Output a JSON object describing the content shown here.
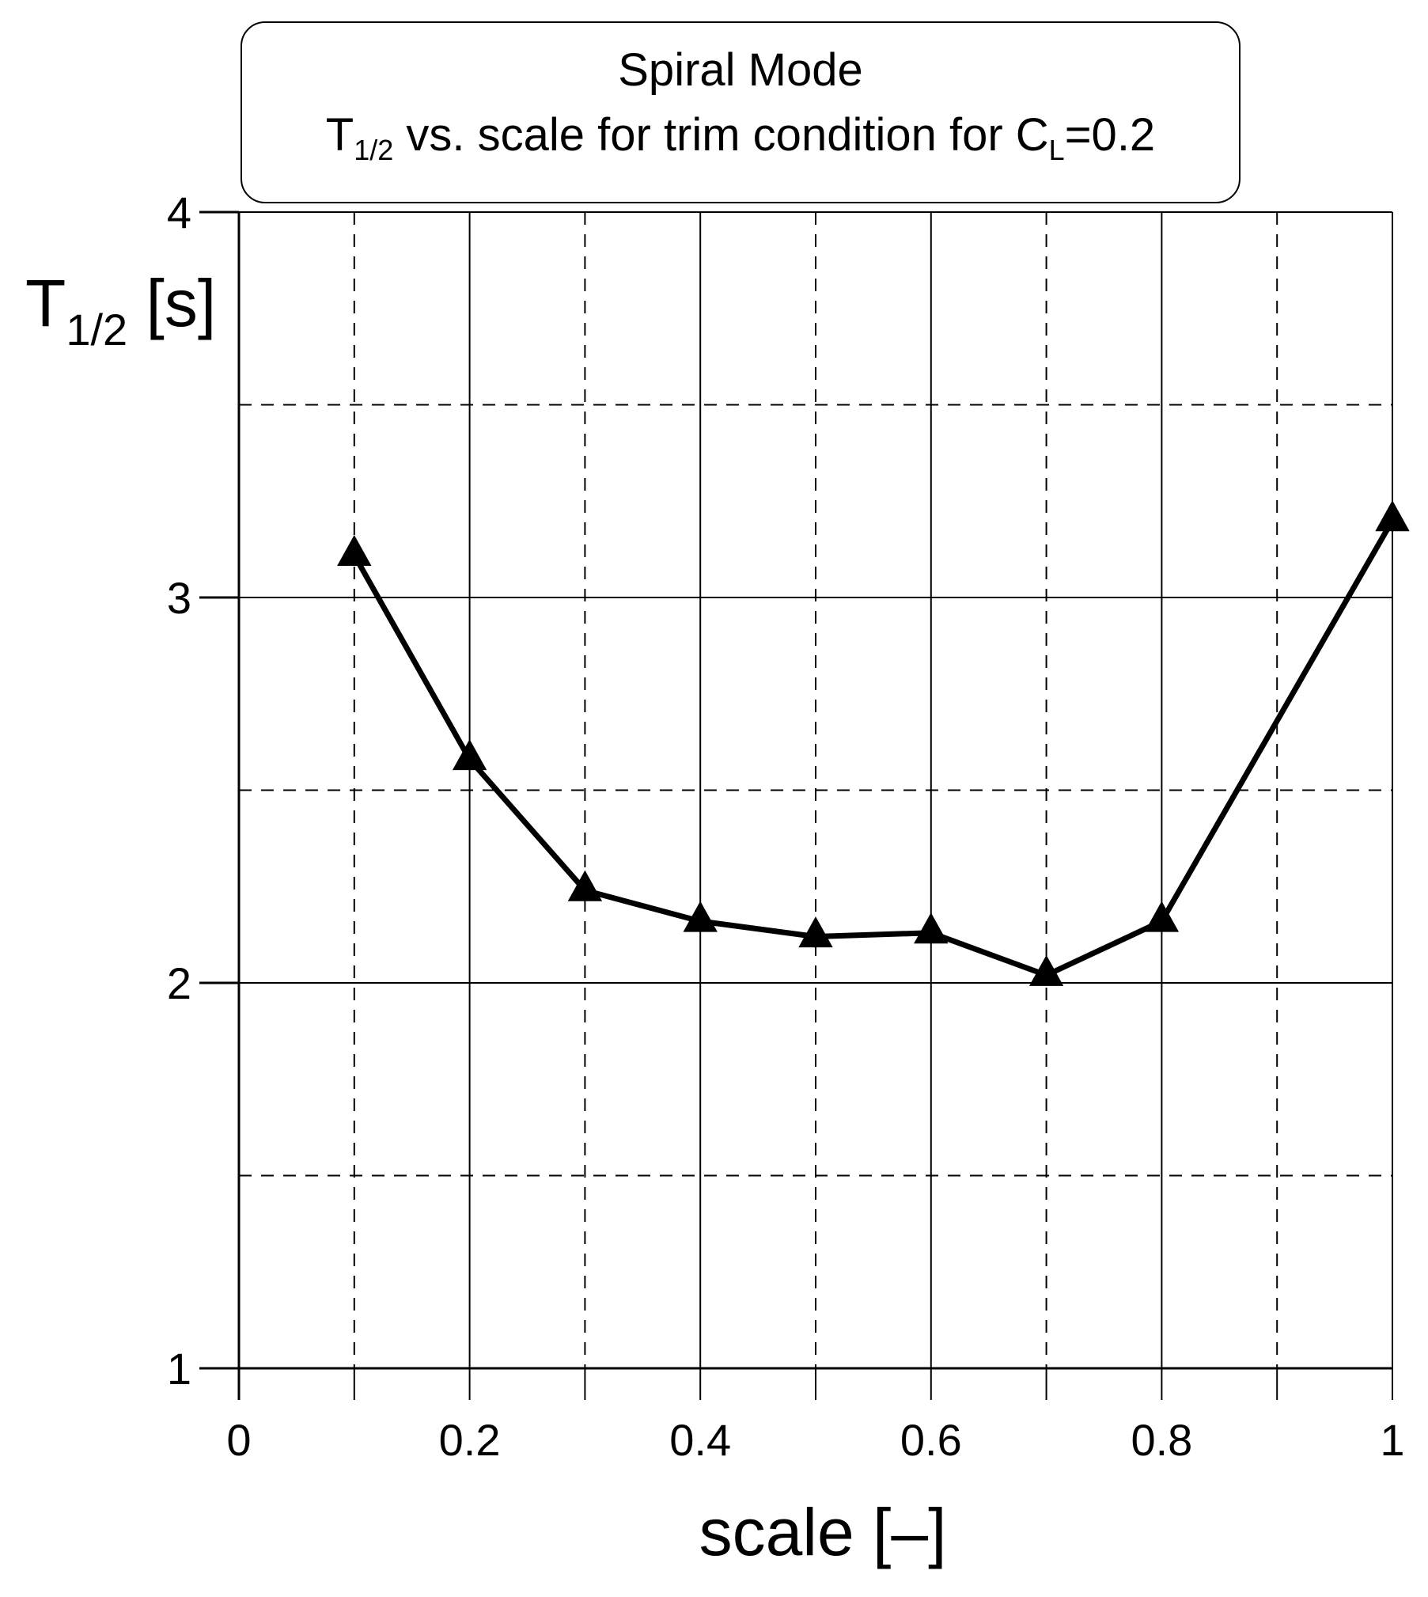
{
  "chart_data": {
    "type": "line",
    "title": "Spiral Mode",
    "subtitle": {
      "symbol": "T",
      "symbol_sub": "1/2",
      "middle": " vs. scale for trim condition for C",
      "cl_sub": "L",
      "end": "=0.2"
    },
    "xlabel": "scale [–]",
    "ylabel": {
      "symbol": "T",
      "symbol_sub": "1/2",
      "unit": " [s]"
    },
    "xlim": [
      0,
      1
    ],
    "ylim": [
      1,
      4
    ],
    "x_ticks": [
      "0",
      "0.2",
      "0.4",
      "0.6",
      "0.8",
      "1"
    ],
    "y_ticks": [
      "1",
      "2",
      "3",
      "4"
    ],
    "grid": true,
    "marker": "triangle",
    "series": [
      {
        "x": [
          0.1,
          0.2,
          0.3,
          0.4,
          0.5,
          0.6,
          0.7,
          0.8,
          1.0
        ],
        "y": [
          3.11,
          2.58,
          2.24,
          2.16,
          2.12,
          2.13,
          2.02,
          2.16,
          3.2
        ]
      }
    ]
  }
}
